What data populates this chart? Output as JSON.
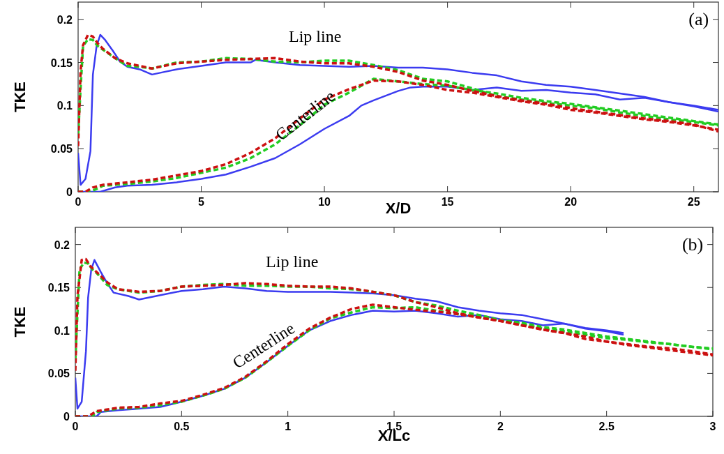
{
  "chart_data": [
    {
      "type": "line",
      "xlabel": "X/D",
      "ylabel": "TKE",
      "xlim": [
        0,
        26
      ],
      "ylim": [
        0,
        0.22
      ],
      "xticks": [
        0,
        5,
        10,
        15,
        20,
        25
      ],
      "yticks": [
        0,
        0.05,
        0.1,
        0.15,
        0.2
      ],
      "grid": false,
      "annotations": [
        "Lip line",
        "Centerline",
        "(a)"
      ],
      "series": [
        {
          "color": "#3b3bf0",
          "line_style": "solid",
          "x": [
            0,
            0.1,
            0.3,
            0.5,
            0.6,
            0.75,
            0.9,
            1.1,
            1.4,
            1.7,
            2,
            2.5,
            3,
            3.5,
            4,
            5,
            6,
            7,
            7.2,
            8,
            9,
            10,
            11,
            12,
            13,
            14,
            15,
            16,
            17,
            18,
            19,
            20,
            21,
            22,
            23,
            24,
            25,
            26
          ],
          "values": [
            0.045,
            0.008,
            0.015,
            0.047,
            0.136,
            0.169,
            0.182,
            0.176,
            0.164,
            0.151,
            0.145,
            0.142,
            0.136,
            0.139,
            0.142,
            0.146,
            0.15,
            0.15,
            0.153,
            0.15,
            0.147,
            0.146,
            0.145,
            0.146,
            0.144,
            0.144,
            0.142,
            0.138,
            0.135,
            0.128,
            0.124,
            0.122,
            0.118,
            0.114,
            0.11,
            0.104,
            0.1,
            0.095
          ]
        },
        {
          "color": "#3b3bf0",
          "line_style": "solid",
          "x": [
            0,
            0.9,
            1.5,
            2,
            3,
            4,
            5,
            6,
            7,
            8,
            9,
            10,
            11,
            11.5,
            12,
            13,
            13.5,
            14,
            15,
            16,
            17,
            18,
            19,
            20,
            21,
            22,
            23,
            24,
            25,
            26
          ],
          "values": [
            0,
            0,
            0.005,
            0.007,
            0.008,
            0.011,
            0.015,
            0.02,
            0.029,
            0.039,
            0.055,
            0.073,
            0.088,
            0.1,
            0.106,
            0.117,
            0.121,
            0.122,
            0.122,
            0.118,
            0.121,
            0.117,
            0.118,
            0.115,
            0.113,
            0.107,
            0.109,
            0.104,
            0.099,
            0.093
          ]
        },
        {
          "color": "#22cc22",
          "line_style": "dashed",
          "x": [
            0,
            0.1,
            0.2,
            0.4,
            0.6,
            0.8,
            1,
            1.5,
            2,
            2.5,
            3,
            4,
            5,
            6,
            7,
            8,
            9,
            10,
            11,
            12,
            13,
            14,
            15,
            16,
            17,
            18,
            19,
            20,
            21,
            22,
            23,
            24,
            25,
            26
          ],
          "values": [
            0.065,
            0.12,
            0.169,
            0.177,
            0.176,
            0.169,
            0.165,
            0.155,
            0.146,
            0.145,
            0.143,
            0.15,
            0.151,
            0.155,
            0.154,
            0.151,
            0.15,
            0.152,
            0.152,
            0.147,
            0.141,
            0.131,
            0.128,
            0.12,
            0.111,
            0.107,
            0.103,
            0.1,
            0.097,
            0.092,
            0.088,
            0.084,
            0.081,
            0.077
          ]
        },
        {
          "color": "#22cc22",
          "line_style": "dashed",
          "x": [
            0,
            0.5,
            0.8,
            1,
            1.5,
            2,
            3,
            4,
            5,
            6,
            7,
            8,
            9,
            10,
            11,
            12,
            13,
            14,
            15,
            16,
            17,
            18,
            19,
            20,
            21,
            22,
            23,
            24,
            25,
            26
          ],
          "values": [
            0,
            0,
            0.004,
            0.007,
            0.008,
            0.009,
            0.012,
            0.016,
            0.022,
            0.028,
            0.039,
            0.055,
            0.077,
            0.101,
            0.115,
            0.131,
            0.128,
            0.125,
            0.123,
            0.118,
            0.114,
            0.109,
            0.105,
            0.102,
            0.098,
            0.094,
            0.09,
            0.086,
            0.082,
            0.078
          ]
        },
        {
          "color": "#cc1111",
          "line_style": "dashed",
          "x": [
            0,
            0.1,
            0.2,
            0.4,
            0.6,
            0.8,
            1,
            1.5,
            2,
            3,
            4,
            5,
            6,
            7,
            8,
            9,
            10,
            11,
            12,
            13,
            14,
            15,
            16,
            17,
            18,
            19,
            20,
            21,
            22,
            23,
            24,
            25,
            26
          ],
          "values": [
            0.053,
            0.14,
            0.17,
            0.182,
            0.18,
            0.172,
            0.166,
            0.155,
            0.149,
            0.143,
            0.149,
            0.151,
            0.153,
            0.154,
            0.155,
            0.151,
            0.149,
            0.149,
            0.145,
            0.139,
            0.129,
            0.124,
            0.117,
            0.111,
            0.106,
            0.102,
            0.097,
            0.093,
            0.089,
            0.085,
            0.082,
            0.078,
            0.07
          ]
        },
        {
          "color": "#cc1111",
          "line_style": "dashed",
          "x": [
            0,
            0.3,
            0.6,
            1,
            2,
            3,
            4,
            5,
            6,
            7,
            8,
            9,
            10,
            11,
            12,
            13,
            14,
            15,
            16,
            17,
            18,
            19,
            20,
            21,
            22,
            23,
            24,
            25,
            26
          ],
          "values": [
            0,
            0,
            0.005,
            0.008,
            0.011,
            0.014,
            0.019,
            0.024,
            0.032,
            0.045,
            0.062,
            0.085,
            0.107,
            0.119,
            0.129,
            0.128,
            0.124,
            0.118,
            0.115,
            0.11,
            0.105,
            0.101,
            0.095,
            0.092,
            0.088,
            0.084,
            0.081,
            0.077,
            0.072
          ]
        }
      ]
    },
    {
      "type": "line",
      "xlabel": "X/Lc",
      "ylabel": "TKE",
      "xlim": [
        0,
        3
      ],
      "ylim": [
        0,
        0.22
      ],
      "xticks": [
        0,
        0.5,
        1,
        1.5,
        2,
        2.5,
        3
      ],
      "yticks": [
        0,
        0.05,
        0.1,
        0.15,
        0.2
      ],
      "grid": false,
      "annotations": [
        "Lip line",
        "Centerline",
        "(b)"
      ],
      "series": [
        {
          "color": "#3b3bf0",
          "line_style": "solid",
          "x": [
            0,
            0.01,
            0.03,
            0.05,
            0.06,
            0.075,
            0.09,
            0.12,
            0.15,
            0.18,
            0.25,
            0.3,
            0.4,
            0.5,
            0.6,
            0.7,
            0.8,
            0.9,
            1,
            1.1,
            1.2,
            1.3,
            1.4,
            1.5,
            1.6,
            1.7,
            1.8,
            1.9,
            2,
            2.1,
            2.2,
            2.3,
            2.4,
            2.5,
            2.58
          ],
          "values": [
            0.045,
            0.009,
            0.017,
            0.076,
            0.138,
            0.171,
            0.182,
            0.168,
            0.155,
            0.144,
            0.14,
            0.136,
            0.141,
            0.146,
            0.148,
            0.151,
            0.149,
            0.146,
            0.145,
            0.145,
            0.145,
            0.144,
            0.143,
            0.141,
            0.137,
            0.134,
            0.127,
            0.123,
            0.12,
            0.118,
            0.113,
            0.108,
            0.103,
            0.1,
            0.097
          ]
        },
        {
          "color": "#3b3bf0",
          "line_style": "solid",
          "x": [
            0,
            0.1,
            0.12,
            0.2,
            0.3,
            0.4,
            0.5,
            0.6,
            0.7,
            0.8,
            0.9,
            1,
            1.1,
            1.2,
            1.3,
            1.4,
            1.5,
            1.6,
            1.7,
            1.8,
            1.9,
            2,
            2.1,
            2.2,
            2.3,
            2.4,
            2.5,
            2.58
          ],
          "values": [
            0,
            0,
            0.005,
            0.007,
            0.009,
            0.011,
            0.017,
            0.024,
            0.032,
            0.045,
            0.063,
            0.082,
            0.1,
            0.111,
            0.118,
            0.123,
            0.122,
            0.123,
            0.12,
            0.116,
            0.118,
            0.113,
            0.111,
            0.106,
            0.108,
            0.102,
            0.099,
            0.095
          ]
        },
        {
          "color": "#22cc22",
          "line_style": "dashed",
          "x": [
            0,
            0.01,
            0.02,
            0.04,
            0.06,
            0.08,
            0.1,
            0.15,
            0.2,
            0.3,
            0.4,
            0.5,
            0.6,
            0.7,
            0.8,
            0.9,
            1,
            1.1,
            1.2,
            1.3,
            1.4,
            1.5,
            1.6,
            1.7,
            1.8,
            1.9,
            2,
            2.1,
            2.2,
            2.3,
            2.4,
            2.5,
            2.6,
            2.7,
            2.8,
            2.9,
            3
          ],
          "values": [
            0.065,
            0.12,
            0.171,
            0.179,
            0.178,
            0.171,
            0.167,
            0.153,
            0.148,
            0.144,
            0.146,
            0.151,
            0.153,
            0.154,
            0.152,
            0.152,
            0.151,
            0.151,
            0.149,
            0.148,
            0.145,
            0.141,
            0.133,
            0.129,
            0.123,
            0.118,
            0.112,
            0.109,
            0.104,
            0.101,
            0.097,
            0.093,
            0.09,
            0.087,
            0.084,
            0.081,
            0.079
          ]
        },
        {
          "color": "#22cc22",
          "line_style": "dashed",
          "x": [
            0,
            0.08,
            0.1,
            0.2,
            0.3,
            0.4,
            0.5,
            0.6,
            0.7,
            0.8,
            0.9,
            1,
            1.1,
            1.2,
            1.3,
            1.4,
            1.5,
            1.6,
            1.7,
            1.8,
            1.9,
            2,
            2.1,
            2.2,
            2.3,
            2.4,
            2.5,
            2.6,
            2.7,
            2.8,
            2.9,
            3
          ],
          "values": [
            0,
            0,
            0.005,
            0.009,
            0.01,
            0.013,
            0.017,
            0.024,
            0.032,
            0.045,
            0.063,
            0.082,
            0.1,
            0.114,
            0.121,
            0.127,
            0.126,
            0.127,
            0.123,
            0.119,
            0.116,
            0.112,
            0.108,
            0.102,
            0.099,
            0.095,
            0.091,
            0.089,
            0.086,
            0.084,
            0.081,
            0.078
          ]
        },
        {
          "color": "#cc1111",
          "line_style": "dashed",
          "x": [
            0,
            0.01,
            0.03,
            0.05,
            0.07,
            0.1,
            0.15,
            0.2,
            0.3,
            0.4,
            0.5,
            0.6,
            0.7,
            0.8,
            0.9,
            1,
            1.1,
            1.2,
            1.3,
            1.4,
            1.5,
            1.6,
            1.7,
            1.8,
            1.9,
            2,
            2.1,
            2.2,
            2.3,
            2.4,
            2.5,
            2.6,
            2.7,
            2.8,
            2.9,
            3
          ],
          "values": [
            0.053,
            0.14,
            0.182,
            0.183,
            0.175,
            0.168,
            0.156,
            0.148,
            0.145,
            0.146,
            0.151,
            0.152,
            0.153,
            0.155,
            0.154,
            0.152,
            0.151,
            0.151,
            0.149,
            0.145,
            0.141,
            0.133,
            0.127,
            0.12,
            0.115,
            0.111,
            0.106,
            0.101,
            0.097,
            0.093,
            0.087,
            0.084,
            0.081,
            0.079,
            0.076,
            0.072
          ]
        },
        {
          "color": "#cc1111",
          "line_style": "dashed",
          "x": [
            0,
            0.06,
            0.1,
            0.2,
            0.3,
            0.4,
            0.5,
            0.6,
            0.7,
            0.8,
            0.9,
            1,
            1.1,
            1.2,
            1.3,
            1.4,
            1.5,
            1.6,
            1.7,
            1.8,
            1.9,
            2,
            2.1,
            2.2,
            2.3,
            2.4,
            2.5,
            2.6,
            2.7,
            2.8,
            2.9,
            3
          ],
          "values": [
            0,
            0,
            0.006,
            0.01,
            0.011,
            0.015,
            0.018,
            0.025,
            0.033,
            0.046,
            0.064,
            0.084,
            0.102,
            0.115,
            0.125,
            0.13,
            0.127,
            0.124,
            0.122,
            0.119,
            0.115,
            0.111,
            0.106,
            0.101,
            0.097,
            0.09,
            0.087,
            0.083,
            0.08,
            0.077,
            0.074,
            0.071
          ]
        }
      ]
    }
  ]
}
